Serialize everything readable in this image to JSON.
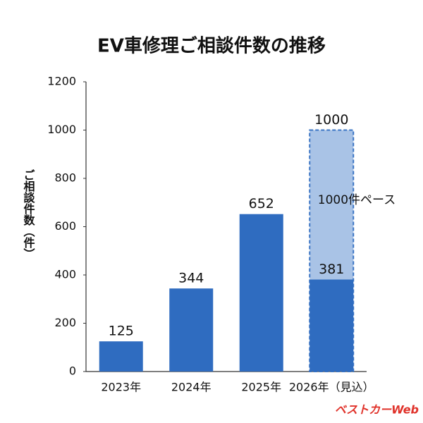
{
  "chart_data": {
    "type": "bar",
    "title": "EV車修理ご相談件数の推移",
    "y_label": "ご相談件数（件）",
    "categories": [
      "2023年",
      "2024年",
      "2025年",
      "2026年（見込）"
    ],
    "series": [
      {
        "color": "#a9c3e6",
        "dashed": true,
        "values": [
          null,
          null,
          null,
          1000
        ]
      },
      {
        "color": "#2f6cc0",
        "values": [
          125,
          344,
          652,
          381
        ]
      }
    ],
    "ylim": [
      0,
      1200
    ],
    "yticks": [
      0,
      200,
      400,
      600,
      800,
      1000,
      1200
    ],
    "grid": false,
    "annotation": "1000件ペース",
    "watermark": "ベストカーWeb"
  }
}
